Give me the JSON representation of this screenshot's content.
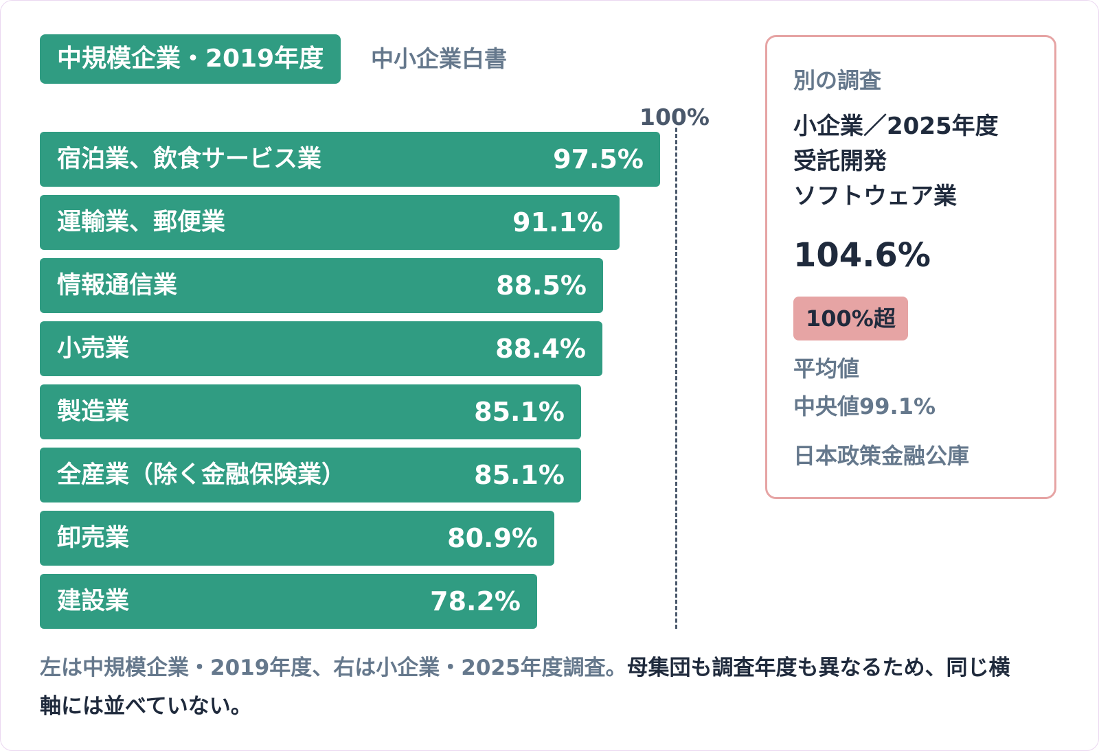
{
  "header": {
    "tag": "中規模企業・2019年度",
    "source": "中小企業白書"
  },
  "colors": {
    "bar": "#309c82",
    "card_border": "#e6a4a4",
    "muted_text": "#65788c",
    "strong_text": "#1f2a3c"
  },
  "chart_data": {
    "type": "bar",
    "orientation": "horizontal",
    "categories": [
      "宿泊業、飲食サービス業",
      "運輸業、郵便業",
      "情報通信業",
      "小売業",
      "製造業",
      "全産業（除く金融保険業）",
      "卸売業",
      "建設業"
    ],
    "values": [
      97.5,
      91.1,
      88.5,
      88.4,
      85.1,
      85.1,
      80.9,
      78.2
    ],
    "value_labels": [
      "97.5%",
      "91.1%",
      "88.5%",
      "88.4%",
      "85.1%",
      "85.1%",
      "80.9%",
      "78.2%"
    ],
    "xlim": [
      0,
      100
    ],
    "reference_line": {
      "value": 100,
      "label": "100%"
    },
    "grid": false
  },
  "card": {
    "heading": "別の調査",
    "subtitle_lines": [
      "小企業／2025年度",
      "受託開発",
      "ソフトウェア業"
    ],
    "value": "104.6%",
    "badge": "100%超",
    "note1": "平均値",
    "note2": "中央値99.1%",
    "source": "日本政策金融公庫"
  },
  "caption": {
    "muted": "左は中規模企業・2019年度、右は小企業・2025年度調査。",
    "strong": "母集団も調査年度も異なるため、同じ横軸には並べていない。"
  }
}
